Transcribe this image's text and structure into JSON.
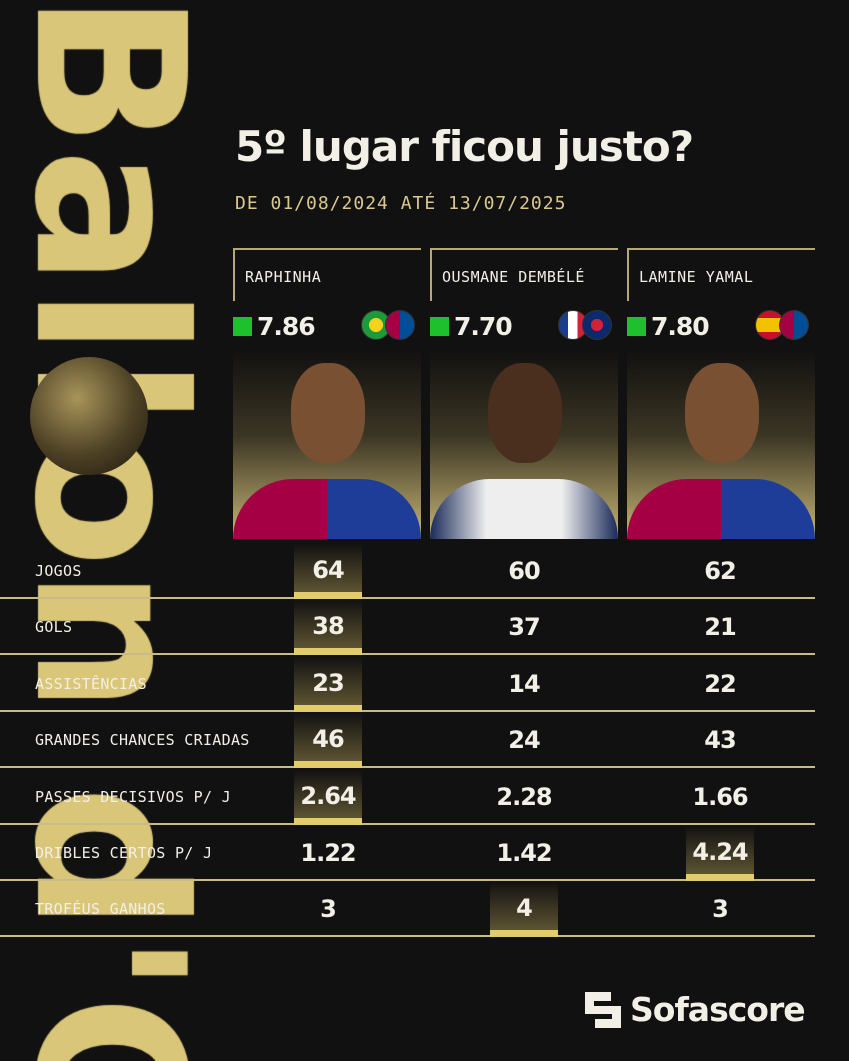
{
  "background_logo_text": "Ballon d'Or",
  "title": "5º lugar ficou justo?",
  "date_range": "DE 01/08/2024 ATÉ 13/07/2025",
  "colors": {
    "gold": "#e3cc6a",
    "rating_green": "#1ec02d",
    "background": "#121111"
  },
  "players": [
    {
      "name": "RAPHINHA",
      "rating": "7.86",
      "badges": [
        "brazil-flag-icon",
        "fc-barcelona-crest-icon"
      ]
    },
    {
      "name": "OUSMANE DEMBÉLÉ",
      "rating": "7.70",
      "badges": [
        "france-flag-icon",
        "psg-crest-icon"
      ]
    },
    {
      "name": "LAMINE YAMAL",
      "rating": "7.80",
      "badges": [
        "spain-flag-icon",
        "fc-barcelona-crest-icon"
      ]
    }
  ],
  "stats": [
    {
      "label": "JOGOS",
      "values": [
        "64",
        "60",
        "62"
      ],
      "best": 0
    },
    {
      "label": "GOLS",
      "values": [
        "38",
        "37",
        "21"
      ],
      "best": 0
    },
    {
      "label": "ASSISTÊNCIAS",
      "values": [
        "23",
        "14",
        "22"
      ],
      "best": 0
    },
    {
      "label": "GRANDES CHANCES CRIADAS",
      "values": [
        "46",
        "24",
        "43"
      ],
      "best": 0
    },
    {
      "label": "PASSES DECISIVOS P/ J",
      "values": [
        "2.64",
        "2.28",
        "1.66"
      ],
      "best": 0
    },
    {
      "label": "DRIBLES CERTOS P/ J",
      "values": [
        "1.22",
        "1.42",
        "4.24"
      ],
      "best": 2
    },
    {
      "label": "TROFÉUS GANHOS",
      "values": [
        "3",
        "4",
        "3"
      ],
      "best": 1
    }
  ],
  "brand": "Sofascore"
}
